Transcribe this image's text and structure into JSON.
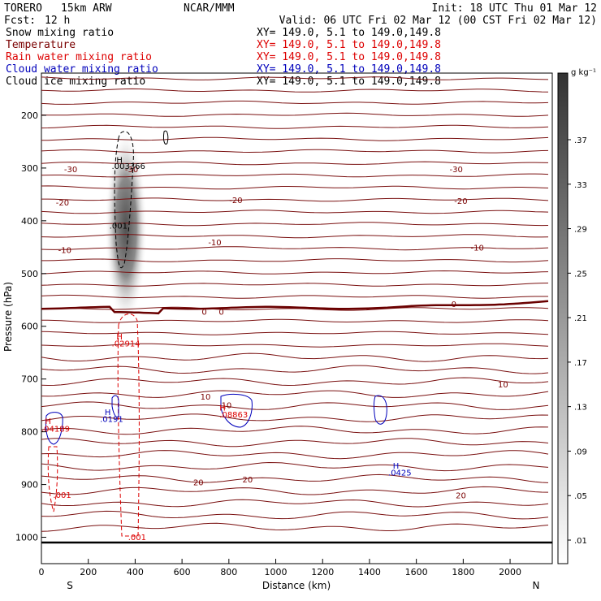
{
  "header": {
    "model": "TORERO",
    "resolution": "15km ARW",
    "center": "NCAR/MMM",
    "init": "Init: 18 UTC Thu 01 Mar 12",
    "fcst_label": "Fcst:",
    "fcst_value": "12 h",
    "valid": "Valid: 06 UTC Fri 02 Mar 12 (00 CST Fri 02 Mar 12)"
  },
  "fields": [
    {
      "name": "Snow mixing ratio",
      "range": "",
      "color": "#000000"
    },
    {
      "name": "Temperature",
      "range": "XY= 149.0,  5.1 to 149.0,149.8",
      "color": "#7a0000"
    },
    {
      "name": "Rain water mixing ratio",
      "range": "XY= 149.0,  5.1 to 149.0,149.8",
      "color": "#dd0000"
    },
    {
      "name": "Cloud water mixing ratio",
      "range": "XY= 149.0,  5.1 to 149.0,149.8",
      "color": "#0000bb"
    },
    {
      "name": "Cloud ice mixing ratio",
      "range": "XY= 149.0,  5.1 to 149.0,149.8",
      "color": "#000000"
    }
  ],
  "top_range": "XY= 149.0,  5.1 to 149.0,149.8",
  "colorbar": {
    "unit": "g kg⁻¹",
    "labels": [
      ".01",
      ".05",
      ".09",
      ".13",
      ".17",
      ".21",
      ".25",
      ".29",
      ".33",
      ".37"
    ]
  },
  "chart_data": {
    "type": "heatmap",
    "xlabel": "Distance (km)",
    "ylabel": "Pressure (hPa)",
    "x_ticks": [
      0,
      200,
      400,
      600,
      800,
      1000,
      1200,
      1400,
      1600,
      1800,
      2000
    ],
    "y_ticks": [
      200,
      300,
      400,
      500,
      600,
      700,
      800,
      900,
      1000
    ],
    "xlim": [
      0,
      2180
    ],
    "ylim_top_bottom": [
      120,
      1050
    ],
    "x_end_labels": {
      "left": "S",
      "right": "N"
    },
    "temperature_contours": [
      {
        "label": "-30",
        "label_pos": [
          [
            125,
            302
          ],
          [
            385,
            302
          ],
          [
            1770,
            302
          ]
        ]
      },
      {
        "label": "-20",
        "label_pos": [
          [
            90,
            365
          ],
          [
            830,
            360
          ],
          [
            1790,
            362
          ]
        ]
      },
      {
        "label": "-10",
        "label_pos": [
          [
            100,
            455
          ],
          [
            740,
            440
          ],
          [
            1860,
            450
          ]
        ]
      },
      {
        "label": "0",
        "label_pos": [
          [
            695,
            572
          ],
          [
            768,
            572
          ],
          [
            1760,
            557
          ]
        ]
      },
      {
        "label": "10",
        "label_pos": [
          [
            700,
            733
          ],
          [
            790,
            749
          ],
          [
            1970,
            710
          ]
        ]
      },
      {
        "label": "20",
        "label_pos": [
          [
            670,
            895
          ],
          [
            880,
            890
          ],
          [
            1790,
            920
          ]
        ]
      }
    ],
    "annotations": [
      {
        "text": "H",
        "x": 320,
        "y": 290,
        "color": "#000000"
      },
      {
        "text": ".003366",
        "x": 300,
        "y": 302,
        "color": "#000000"
      },
      {
        "text": ".001",
        "x": 290,
        "y": 415,
        "color": "#000000"
      },
      {
        "text": "H",
        "x": 320,
        "y": 625,
        "color": "#dd0000"
      },
      {
        "text": ".02914",
        "x": 300,
        "y": 638,
        "color": "#dd0000"
      },
      {
        "text": "H",
        "x": 270,
        "y": 768,
        "color": "#0000bb"
      },
      {
        "text": ".0191",
        "x": 250,
        "y": 781,
        "color": "#0000bb"
      },
      {
        "text": "H",
        "x": 15,
        "y": 785,
        "color": "#dd0000"
      },
      {
        "text": ".04189",
        "x": 0,
        "y": 800,
        "color": "#dd0000"
      },
      {
        "text": "H",
        "x": 760,
        "y": 760,
        "color": "#dd0000"
      },
      {
        "text": ".08863",
        "x": 760,
        "y": 773,
        "color": "#dd0000"
      },
      {
        "text": ".001",
        "x": 50,
        "y": 925,
        "color": "#dd0000"
      },
      {
        "text": ".001",
        "x": 370,
        "y": 1005,
        "color": "#dd0000"
      },
      {
        "text": "H",
        "x": 1500,
        "y": 870,
        "color": "#0000bb"
      },
      {
        "text": ".0425",
        "x": 1480,
        "y": 883,
        "color": "#0000bb"
      }
    ]
  }
}
